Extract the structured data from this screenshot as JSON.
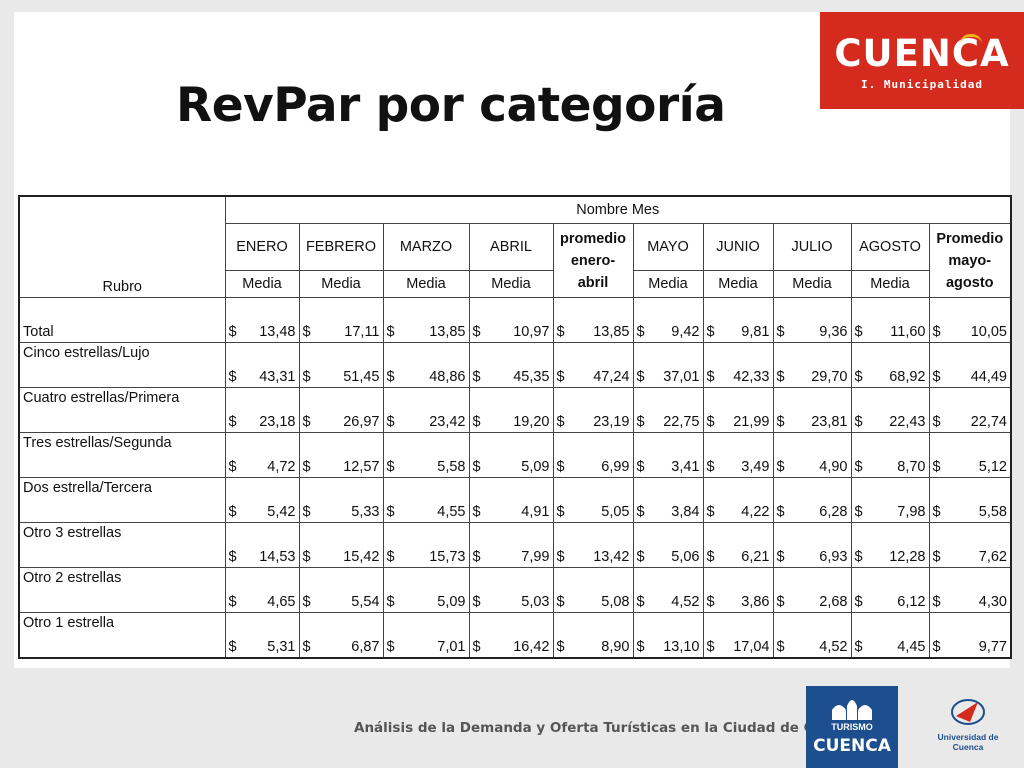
{
  "slide": {
    "title": "RevPar por categoría"
  },
  "logo": {
    "word": "CUENCA",
    "sub": "I. Municipalidad",
    "color": "#d52b1e"
  },
  "table": {
    "header_group": "Nombre Mes",
    "rubro_header": "Rubro",
    "months": [
      "ENERO",
      "FEBRERO",
      "MARZO",
      "ABRIL",
      "MAYO",
      "JUNIO",
      "JULIO",
      "AGOSTO"
    ],
    "media_label": "Media",
    "prom1": [
      "promedio",
      "enero-",
      "abril"
    ],
    "prom2": [
      "Promedio",
      "mayo-",
      "agosto"
    ],
    "currency": "$",
    "rows": [
      {
        "rubro": "Total",
        "v": [
          "13,48",
          "17,11",
          "13,85",
          "10,97",
          "13,85",
          "9,42",
          "9,81",
          "9,36",
          "11,60",
          "10,05"
        ]
      },
      {
        "rubro": "Cinco estrellas/Lujo",
        "v": [
          "43,31",
          "51,45",
          "48,86",
          "45,35",
          "47,24",
          "37,01",
          "42,33",
          "29,70",
          "68,92",
          "44,49"
        ]
      },
      {
        "rubro": "Cuatro estrellas/Primera",
        "v": [
          "23,18",
          "26,97",
          "23,42",
          "19,20",
          "23,19",
          "22,75",
          "21,99",
          "23,81",
          "22,43",
          "22,74"
        ]
      },
      {
        "rubro": "Tres estrellas/Segunda",
        "v": [
          "4,72",
          "12,57",
          "5,58",
          "5,09",
          "6,99",
          "3,41",
          "3,49",
          "4,90",
          "8,70",
          "5,12"
        ]
      },
      {
        "rubro": "Dos estrella/Tercera",
        "v": [
          "5,42",
          "5,33",
          "4,55",
          "4,91",
          "5,05",
          "3,84",
          "4,22",
          "6,28",
          "7,98",
          "5,58"
        ]
      },
      {
        "rubro": "Otro 3 estrellas",
        "v": [
          "14,53",
          "15,42",
          "15,73",
          "7,99",
          "13,42",
          "5,06",
          "6,21",
          "6,93",
          "12,28",
          "7,62"
        ]
      },
      {
        "rubro": "Otro 2 estrellas",
        "v": [
          "4,65",
          "5,54",
          "5,09",
          "5,03",
          "5,08",
          "4,52",
          "3,86",
          "2,68",
          "6,12",
          "4,30"
        ]
      },
      {
        "rubro": "Otro 1 estrella",
        "v": [
          "5,31",
          "6,87",
          "7,01",
          "16,42",
          "8,90",
          "13,10",
          "17,04",
          "4,52",
          "4,45",
          "9,77"
        ]
      }
    ]
  },
  "footer": {
    "caption": "Análisis de la Demanda y Oferta Turísticas en la Ciudad de Cuenca",
    "turismo_top": "TURISMO",
    "turismo_word": "CUENCA",
    "university": "Universidad de Cuenca"
  }
}
